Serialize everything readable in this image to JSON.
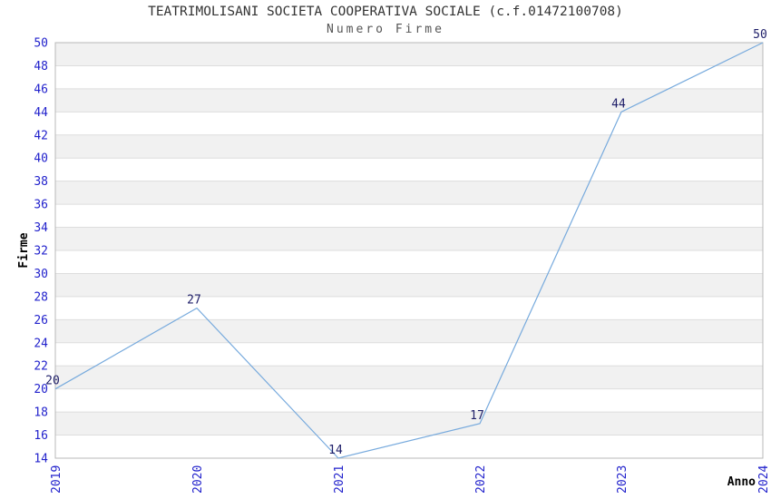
{
  "title": "TEATRIMOLISANI SOCIETA COOPERATIVA SOCIALE (c.f.01472100708)",
  "subtitle": "Numero Firme",
  "chart_data": {
    "type": "line",
    "x": [
      "2019",
      "2020",
      "2021",
      "2022",
      "2023",
      "2024"
    ],
    "series": [
      {
        "name": "Numero Firme",
        "values": [
          20,
          27,
          14,
          17,
          44,
          50
        ]
      }
    ],
    "title": "TEATRIMOLISANI SOCIETA COOPERATIVA SOCIALE (c.f.01472100708)",
    "subtitle": "Numero Firme",
    "xlabel": "Anno",
    "ylabel": "Firme",
    "ylim": [
      14,
      50
    ],
    "ytick_step": 2,
    "grid": true,
    "banded_background": true,
    "legend_position": "none",
    "data_labels_shown": true
  },
  "colors": {
    "line": "#77aadd",
    "tick_label": "#2222cc",
    "data_label": "#20206a",
    "band": "#f1f1f1",
    "grid": "#dddddd",
    "plot_border": "#b8b8b8",
    "title": "#333333",
    "subtitle": "#555555",
    "axis_title": "#000000",
    "background": "#ffffff"
  }
}
